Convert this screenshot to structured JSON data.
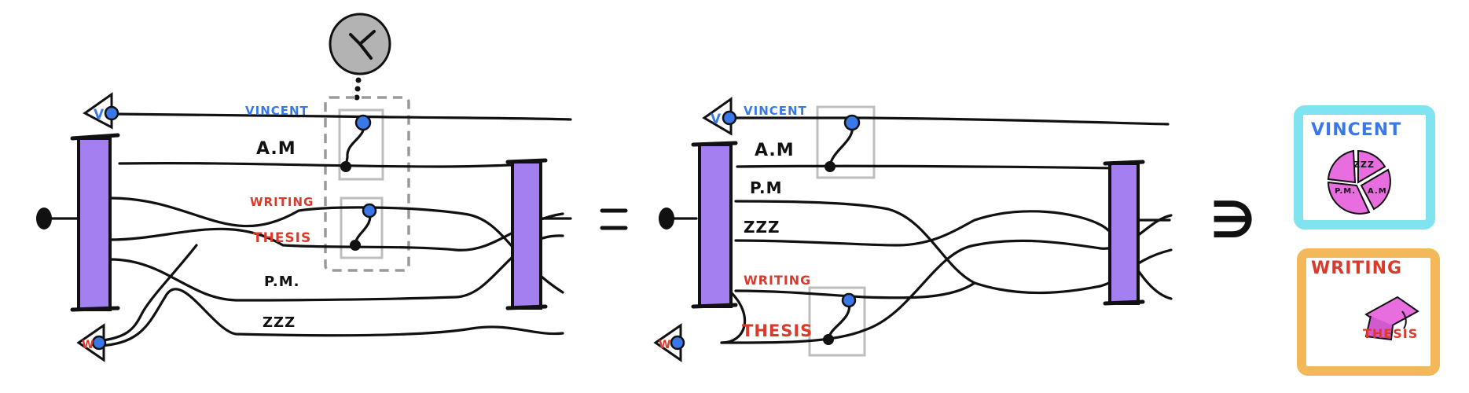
{
  "left_diagram": {
    "wire_labels": [
      "VINCENT",
      "A.M",
      "WRITING",
      "THESIS",
      "P.M.",
      "ZZZ"
    ],
    "corner_labels": [
      "V",
      "W"
    ]
  },
  "right_diagram": {
    "wire_labels": [
      "VINCENT",
      "A.M",
      "P.M",
      "ZZZ",
      "WRITING",
      "THESIS"
    ],
    "corner_labels": [
      "V",
      "W"
    ]
  },
  "relation_symbol": "∋",
  "cards": [
    {
      "title": "VINCENT",
      "pieces": [
        "ZZZ",
        "P.M.",
        "A.M."
      ],
      "color": "#7fe3f0"
    },
    {
      "title": "WRITING",
      "label": "THESIS",
      "color": "#f2b85a"
    }
  ],
  "colors": {
    "accent_purple": "#a47ff0",
    "blue": "#3b78e7",
    "red": "#d93a2b"
  }
}
